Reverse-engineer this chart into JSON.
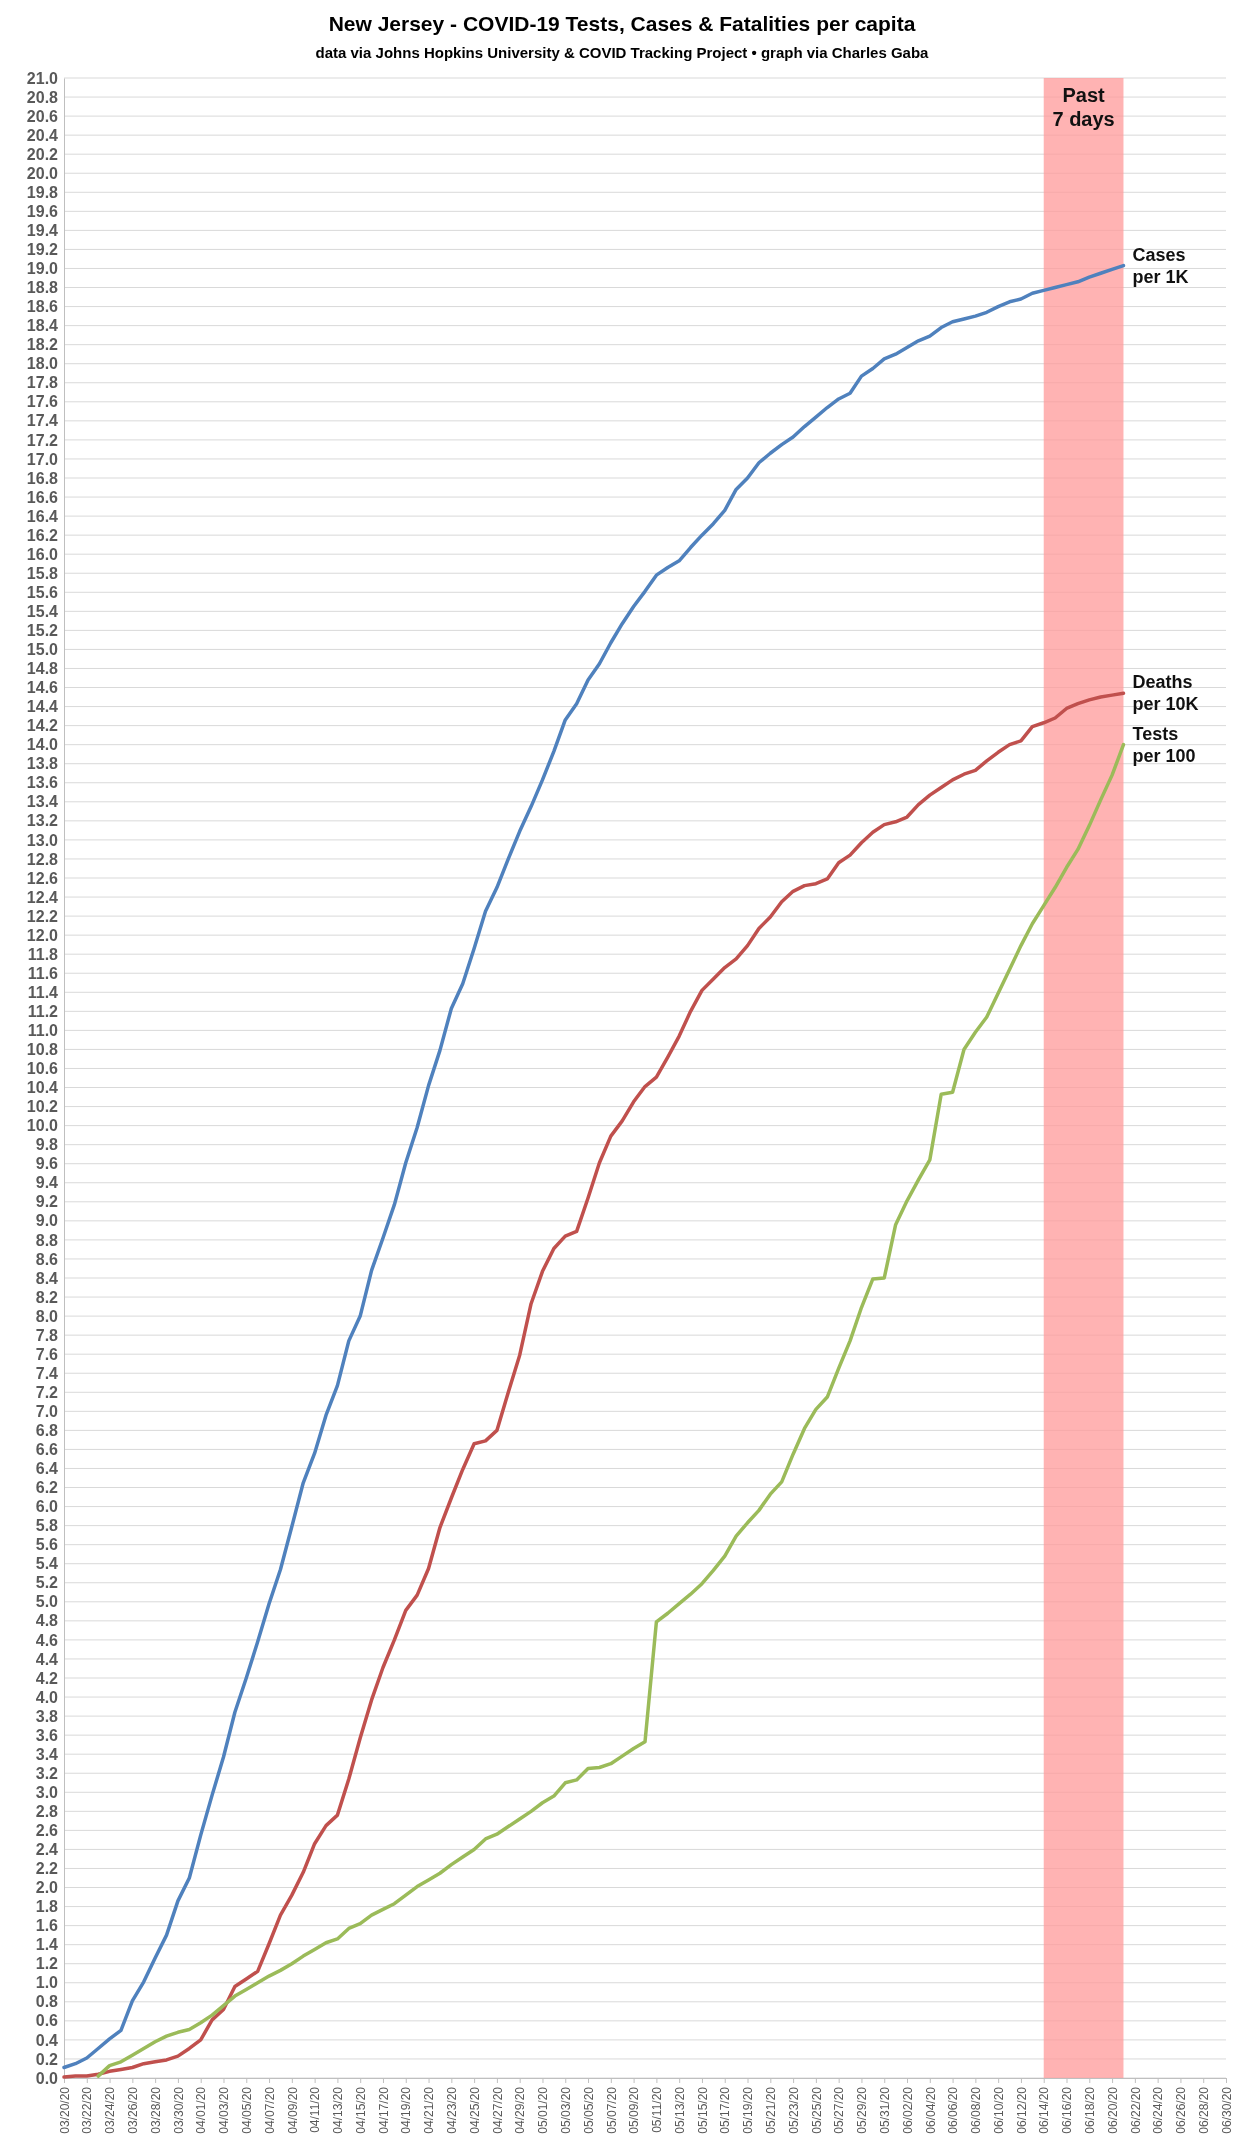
{
  "chart_data": {
    "type": "line",
    "title": "New Jersey - COVID-19 Tests, Cases & Fatalities per capita",
    "subtitle": "data via Johns Hopkins University & COVID Tracking Project • graph via Charles Gaba",
    "x": [
      "--03-20",
      "--03-21",
      "--03-22",
      "--03-23",
      "--03-24",
      "--03-25",
      "--03-26",
      "--03-27",
      "--03-28",
      "--03-29",
      "--03-30",
      "--03-31",
      "--04-01",
      "--04-02",
      "--04-03",
      "--04-04",
      "--04-05",
      "--04-06",
      "--04-07",
      "--04-08",
      "--04-09",
      "--04-10",
      "--04-11",
      "--04-12",
      "--04-13",
      "--04-14",
      "--04-15",
      "--04-16",
      "--04-17",
      "--04-18",
      "--04-19",
      "--04-20",
      "--04-21",
      "--04-22",
      "--04-23",
      "--04-24",
      "--04-25",
      "--04-26",
      "--04-27",
      "--04-28",
      "--04-29",
      "--04-30",
      "--05-01",
      "--05-02",
      "--05-03",
      "--05-04",
      "--05-05",
      "--05-06",
      "--05-07",
      "--05-08",
      "--05-09",
      "--05-10",
      "--05-11",
      "--05-12",
      "--05-13",
      "--05-14",
      "--05-15",
      "--05-16",
      "--05-17",
      "--05-18",
      "--05-19",
      "--05-20",
      "--05-21",
      "--05-22",
      "--05-23",
      "--05-24",
      "--05-25",
      "--05-26",
      "--05-27",
      "--05-28",
      "--05-29",
      "--05-30",
      "--05-31",
      "--06-01",
      "--06-02",
      "--06-03",
      "--06-04",
      "--06-05",
      "--06-06",
      "--06-07",
      "--06-08",
      "--06-09",
      "--06-10",
      "--06-11",
      "--06-12",
      "--06-13",
      "--06-14",
      "--06-15",
      "--06-16",
      "--06-17",
      "--06-18",
      "--06-19",
      "--06-20",
      "--06-21"
    ],
    "series": [
      {
        "name": "Cases per 1K",
        "color": "#4f81bd",
        "values": [
          0.11,
          0.15,
          0.21,
          0.31,
          0.41,
          0.5,
          0.81,
          1.01,
          1.26,
          1.5,
          1.86,
          2.1,
          2.55,
          2.97,
          3.37,
          3.84,
          4.2,
          4.58,
          4.98,
          5.34,
          5.79,
          6.25,
          6.56,
          6.96,
          7.27,
          7.74,
          8.0,
          8.48,
          8.82,
          9.17,
          9.61,
          9.98,
          10.42,
          10.79,
          11.23,
          11.49,
          11.86,
          12.25,
          12.5,
          12.8,
          13.09,
          13.35,
          13.63,
          13.93,
          14.26,
          14.43,
          14.68,
          14.85,
          15.07,
          15.27,
          15.45,
          15.61,
          15.78,
          15.86,
          15.93,
          16.07,
          16.2,
          16.32,
          16.46,
          16.68,
          16.8,
          16.96,
          17.06,
          17.15,
          17.23,
          17.34,
          17.44,
          17.54,
          17.63,
          17.69,
          17.87,
          17.95,
          18.05,
          18.1,
          18.17,
          18.24,
          18.29,
          18.38,
          18.44,
          18.47,
          18.5,
          18.54,
          18.6,
          18.65,
          18.68,
          18.74,
          18.77,
          18.8,
          18.83,
          18.86,
          18.91,
          18.95,
          18.99,
          19.03
        ]
      },
      {
        "name": "Deaths per 10K",
        "color": "#c0504d",
        "values": [
          0.01,
          0.02,
          0.02,
          0.04,
          0.07,
          0.09,
          0.11,
          0.15,
          0.17,
          0.19,
          0.23,
          0.31,
          0.4,
          0.61,
          0.72,
          0.96,
          1.04,
          1.12,
          1.41,
          1.71,
          1.92,
          2.16,
          2.46,
          2.65,
          2.76,
          3.14,
          3.57,
          3.97,
          4.31,
          4.6,
          4.91,
          5.07,
          5.35,
          5.78,
          6.09,
          6.39,
          6.66,
          6.69,
          6.8,
          7.2,
          7.59,
          8.13,
          8.47,
          8.71,
          8.84,
          8.89,
          9.24,
          9.61,
          9.89,
          10.05,
          10.25,
          10.41,
          10.51,
          10.72,
          10.94,
          11.2,
          11.42,
          11.54,
          11.66,
          11.75,
          11.89,
          12.07,
          12.19,
          12.35,
          12.46,
          12.52,
          12.54,
          12.59,
          12.76,
          12.84,
          12.97,
          13.08,
          13.16,
          13.19,
          13.24,
          13.37,
          13.47,
          13.55,
          13.63,
          13.69,
          13.73,
          13.83,
          13.92,
          14.0,
          14.04,
          14.19,
          14.23,
          14.28,
          14.38,
          14.43,
          14.47,
          14.5,
          14.52,
          14.54
        ]
      },
      {
        "name": "Tests per 100",
        "color": "#9bbb59",
        "values": [
          null,
          null,
          null,
          0.02,
          0.13,
          0.17,
          0.24,
          0.31,
          0.38,
          0.44,
          0.48,
          0.51,
          0.58,
          0.66,
          0.76,
          0.86,
          0.93,
          1.0,
          1.07,
          1.13,
          1.2,
          1.28,
          1.35,
          1.42,
          1.46,
          1.57,
          1.62,
          1.71,
          1.77,
          1.83,
          1.92,
          2.01,
          2.08,
          2.15,
          2.24,
          2.32,
          2.4,
          2.51,
          2.56,
          2.64,
          2.72,
          2.8,
          2.89,
          2.96,
          3.1,
          3.13,
          3.25,
          3.26,
          3.3,
          3.38,
          3.46,
          3.53,
          4.79,
          4.88,
          4.98,
          5.08,
          5.19,
          5.33,
          5.48,
          5.69,
          5.83,
          5.96,
          6.13,
          6.26,
          6.55,
          6.82,
          7.02,
          7.15,
          7.45,
          7.74,
          8.09,
          8.39,
          8.4,
          8.96,
          9.21,
          9.43,
          9.64,
          10.33,
          10.35,
          10.8,
          10.98,
          11.14,
          11.39,
          11.64,
          11.89,
          12.12,
          12.31,
          12.5,
          12.71,
          12.9,
          13.15,
          13.42,
          13.68,
          14.0
        ]
      }
    ],
    "xlim": [
      "--03-20",
      "--06-30"
    ],
    "xticks": [
      {
        "value": "--03-20",
        "label": "03/20/20"
      },
      {
        "value": "--03-22",
        "label": "03/22/20"
      },
      {
        "value": "--03-24",
        "label": "03/24/20"
      },
      {
        "value": "--03-26",
        "label": "03/26/20"
      },
      {
        "value": "--03-28",
        "label": "03/28/20"
      },
      {
        "value": "--03-30",
        "label": "03/30/20"
      },
      {
        "value": "--04-01",
        "label": "04/01/20"
      },
      {
        "value": "--04-03",
        "label": "04/03/20"
      },
      {
        "value": "--04-05",
        "label": "04/05/20"
      },
      {
        "value": "--04-07",
        "label": "04/07/20"
      },
      {
        "value": "--04-09",
        "label": "04/09/20"
      },
      {
        "value": "--04-11",
        "label": "04/11/20"
      },
      {
        "value": "--04-13",
        "label": "04/13/20"
      },
      {
        "value": "--04-15",
        "label": "04/15/20"
      },
      {
        "value": "--04-17",
        "label": "04/17/20"
      },
      {
        "value": "--04-19",
        "label": "04/19/20"
      },
      {
        "value": "--04-21",
        "label": "04/21/20"
      },
      {
        "value": "--04-23",
        "label": "04/23/20"
      },
      {
        "value": "--04-25",
        "label": "04/25/20"
      },
      {
        "value": "--04-27",
        "label": "04/27/20"
      },
      {
        "value": "--04-29",
        "label": "04/29/20"
      },
      {
        "value": "--05-01",
        "label": "05/01/20"
      },
      {
        "value": "--05-03",
        "label": "05/03/20"
      },
      {
        "value": "--05-05",
        "label": "05/05/20"
      },
      {
        "value": "--05-07",
        "label": "05/07/20"
      },
      {
        "value": "--05-09",
        "label": "05/09/20"
      },
      {
        "value": "--05-11",
        "label": "05/11/20"
      },
      {
        "value": "--05-13",
        "label": "05/13/20"
      },
      {
        "value": "--05-15",
        "label": "05/15/20"
      },
      {
        "value": "--05-17",
        "label": "05/17/20"
      },
      {
        "value": "--05-19",
        "label": "05/19/20"
      },
      {
        "value": "--05-21",
        "label": "05/21/20"
      },
      {
        "value": "--05-23",
        "label": "05/23/20"
      },
      {
        "value": "--05-25",
        "label": "05/25/20"
      },
      {
        "value": "--05-27",
        "label": "05/27/20"
      },
      {
        "value": "--05-29",
        "label": "05/29/20"
      },
      {
        "value": "--05-31",
        "label": "05/31/20"
      },
      {
        "value": "--06-02",
        "label": "06/02/20"
      },
      {
        "value": "--06-04",
        "label": "06/04/20"
      },
      {
        "value": "--06-06",
        "label": "06/06/20"
      },
      {
        "value": "--06-08",
        "label": "06/08/20"
      },
      {
        "value": "--06-10",
        "label": "06/10/20"
      },
      {
        "value": "--06-12",
        "label": "06/12/20"
      },
      {
        "value": "--06-14",
        "label": "06/14/20"
      },
      {
        "value": "--06-16",
        "label": "06/16/20"
      },
      {
        "value": "--06-18",
        "label": "06/18/20"
      },
      {
        "value": "--06-20",
        "label": "06/20/20"
      },
      {
        "value": "--06-22",
        "label": "06/22/20"
      },
      {
        "value": "--06-24",
        "label": "06/24/20"
      },
      {
        "value": "--06-26",
        "label": "06/26/20"
      },
      {
        "value": "--06-28",
        "label": "06/28/20"
      },
      {
        "value": "--06-30",
        "label": "06/30/20"
      }
    ],
    "ylim": [
      0,
      21
    ],
    "yticks": [
      {
        "value": 0,
        "label": "0.0"
      },
      {
        "value": 0.2,
        "label": "0.2"
      },
      {
        "value": 0.4,
        "label": "0.4"
      },
      {
        "value": 0.6,
        "label": "0.6"
      },
      {
        "value": 0.8,
        "label": "0.8"
      },
      {
        "value": 1,
        "label": "1.0"
      },
      {
        "value": 1.2,
        "label": "1.2"
      },
      {
        "value": 1.4,
        "label": "1.4"
      },
      {
        "value": 1.6,
        "label": "1.6"
      },
      {
        "value": 1.8,
        "label": "1.8"
      },
      {
        "value": 2,
        "label": "2.0"
      },
      {
        "value": 2.2,
        "label": "2.2"
      },
      {
        "value": 2.4,
        "label": "2.4"
      },
      {
        "value": 2.6,
        "label": "2.6"
      },
      {
        "value": 2.8,
        "label": "2.8"
      },
      {
        "value": 3,
        "label": "3.0"
      },
      {
        "value": 3.2,
        "label": "3.2"
      },
      {
        "value": 3.4,
        "label": "3.4"
      },
      {
        "value": 3.6,
        "label": "3.6"
      },
      {
        "value": 3.8,
        "label": "3.8"
      },
      {
        "value": 4,
        "label": "4.0"
      },
      {
        "value": 4.2,
        "label": "4.2"
      },
      {
        "value": 4.4,
        "label": "4.4"
      },
      {
        "value": 4.6,
        "label": "4.6"
      },
      {
        "value": 4.8,
        "label": "4.8"
      },
      {
        "value": 5,
        "label": "5.0"
      },
      {
        "value": 5.2,
        "label": "5.2"
      },
      {
        "value": 5.4,
        "label": "5.4"
      },
      {
        "value": 5.6,
        "label": "5.6"
      },
      {
        "value": 5.8,
        "label": "5.8"
      },
      {
        "value": 6,
        "label": "6.0"
      },
      {
        "value": 6.2,
        "label": "6.2"
      },
      {
        "value": 6.4,
        "label": "6.4"
      },
      {
        "value": 6.6,
        "label": "6.6"
      },
      {
        "value": 6.8,
        "label": "6.8"
      },
      {
        "value": 7,
        "label": "7.0"
      },
      {
        "value": 7.2,
        "label": "7.2"
      },
      {
        "value": 7.4,
        "label": "7.4"
      },
      {
        "value": 7.6,
        "label": "7.6"
      },
      {
        "value": 7.8,
        "label": "7.8"
      },
      {
        "value": 8,
        "label": "8.0"
      },
      {
        "value": 8.2,
        "label": "8.2"
      },
      {
        "value": 8.4,
        "label": "8.4"
      },
      {
        "value": 8.6,
        "label": "8.6"
      },
      {
        "value": 8.8,
        "label": "8.8"
      },
      {
        "value": 9,
        "label": "9.0"
      },
      {
        "value": 9.2,
        "label": "9.2"
      },
      {
        "value": 9.4,
        "label": "9.4"
      },
      {
        "value": 9.6,
        "label": "9.6"
      },
      {
        "value": 9.8,
        "label": "9.8"
      },
      {
        "value": 10,
        "label": "10.0"
      },
      {
        "value": 10.2,
        "label": "10.2"
      },
      {
        "value": 10.4,
        "label": "10.4"
      },
      {
        "value": 10.6,
        "label": "10.6"
      },
      {
        "value": 10.8,
        "label": "10.8"
      },
      {
        "value": 11,
        "label": "11.0"
      },
      {
        "value": 11.2,
        "label": "11.2"
      },
      {
        "value": 11.4,
        "label": "11.4"
      },
      {
        "value": 11.6,
        "label": "11.6"
      },
      {
        "value": 11.8,
        "label": "11.8"
      },
      {
        "value": 12,
        "label": "12.0"
      },
      {
        "value": 12.2,
        "label": "12.2"
      },
      {
        "value": 12.4,
        "label": "12.4"
      },
      {
        "value": 12.6,
        "label": "12.6"
      },
      {
        "value": 12.8,
        "label": "12.8"
      },
      {
        "value": 13,
        "label": "13.0"
      },
      {
        "value": 13.2,
        "label": "13.2"
      },
      {
        "value": 13.4,
        "label": "13.4"
      },
      {
        "value": 13.6,
        "label": "13.6"
      },
      {
        "value": 13.8,
        "label": "13.8"
      },
      {
        "value": 14,
        "label": "14.0"
      },
      {
        "value": 14.2,
        "label": "14.2"
      },
      {
        "value": 14.4,
        "label": "14.4"
      },
      {
        "value": 14.6,
        "label": "14.6"
      },
      {
        "value": 14.8,
        "label": "14.8"
      },
      {
        "value": 15,
        "label": "15.0"
      },
      {
        "value": 15.2,
        "label": "15.2"
      },
      {
        "value": 15.4,
        "label": "15.4"
      },
      {
        "value": 15.6,
        "label": "15.6"
      },
      {
        "value": 15.8,
        "label": "15.8"
      },
      {
        "value": 16,
        "label": "16.0"
      },
      {
        "value": 16.2,
        "label": "16.2"
      },
      {
        "value": 16.4,
        "label": "16.4"
      },
      {
        "value": 16.6,
        "label": "16.6"
      },
      {
        "value": 16.8,
        "label": "16.8"
      },
      {
        "value": 17,
        "label": "17.0"
      },
      {
        "value": 17.2,
        "label": "17.2"
      },
      {
        "value": 17.4,
        "label": "17.4"
      },
      {
        "value": 17.6,
        "label": "17.6"
      },
      {
        "value": 17.8,
        "label": "17.8"
      },
      {
        "value": 18,
        "label": "18.0"
      },
      {
        "value": 18.2,
        "label": "18.2"
      },
      {
        "value": 18.4,
        "label": "18.4"
      },
      {
        "value": 18.6,
        "label": "18.6"
      },
      {
        "value": 18.8,
        "label": "18.8"
      },
      {
        "value": 19,
        "label": "19.0"
      },
      {
        "value": 19.2,
        "label": "19.2"
      },
      {
        "value": 19.4,
        "label": "19.4"
      },
      {
        "value": 19.6,
        "label": "19.6"
      },
      {
        "value": 19.8,
        "label": "19.8"
      },
      {
        "value": 20,
        "label": "20.0"
      },
      {
        "value": 20.2,
        "label": "20.2"
      },
      {
        "value": 20.4,
        "label": "20.4"
      },
      {
        "value": 20.6,
        "label": "20.6"
      },
      {
        "value": 20.8,
        "label": "20.8"
      },
      {
        "value": 21,
        "label": "21.0"
      }
    ],
    "grid": "y",
    "bands": [
      {
        "axis": "x",
        "from": "--06-14",
        "to": "--06-21",
        "label": "Past 7 days",
        "color": "#ff9a9a"
      }
    ]
  }
}
